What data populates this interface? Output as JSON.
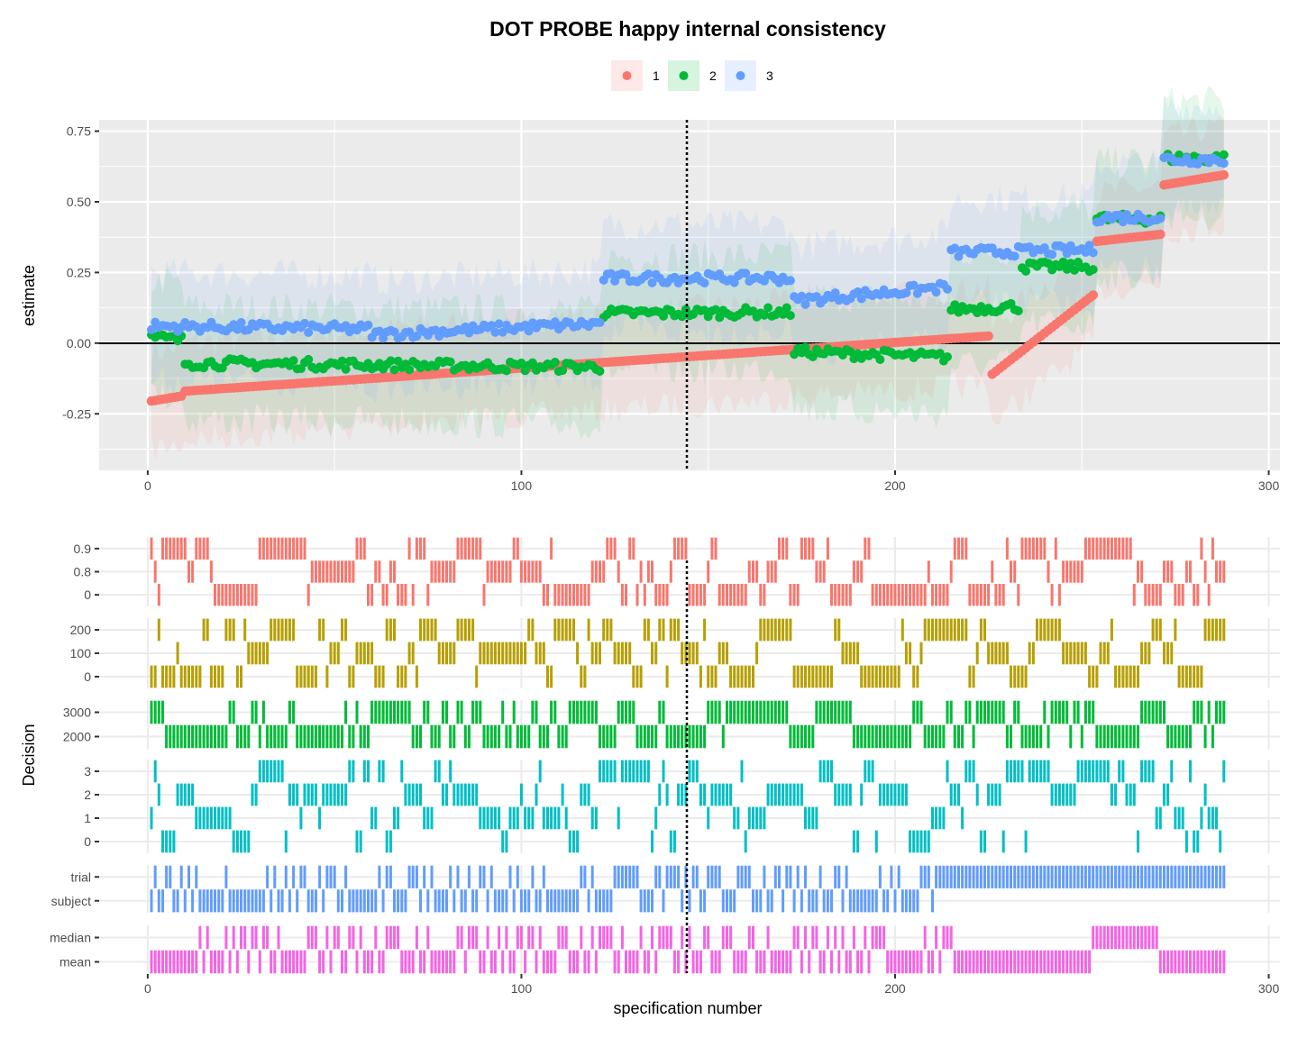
{
  "chart_data": [
    {
      "type": "scatter",
      "title": "DOT PROBE happy internal consistency",
      "xlabel": "",
      "ylabel": "estimate",
      "xlim": [
        -13,
        303
      ],
      "ylim": [
        -0.45,
        0.79
      ],
      "x_ticks": [
        0,
        100,
        200,
        300
      ],
      "y_ticks": [
        0.75,
        0.5,
        0.25,
        0.0,
        -0.25
      ],
      "y_tick_labels": [
        "0.75",
        "0.50",
        "0.25",
        "0.00",
        "-0.25"
      ],
      "reference_lines": {
        "hline_y": 0,
        "vline_x": 144
      },
      "n_specifications": 288,
      "legend_position": "top",
      "background": "#ebebeb",
      "series": [
        {
          "name": "1",
          "color": "#F8766D",
          "ribbon_halfwidth": 0.17,
          "segments": [
            {
              "x": [
                1,
                10
              ],
              "y": [
                -0.205,
                -0.185
              ]
            },
            {
              "x": [
                10,
                225
              ],
              "y": [
                -0.17,
                0.025
              ]
            },
            {
              "x": [
                226,
                253
              ],
              "y": [
                -0.11,
                0.17
              ]
            },
            {
              "x": [
                254,
                271
              ],
              "y": [
                0.36,
                0.385
              ]
            },
            {
              "x": [
                272,
                288
              ],
              "y": [
                0.56,
                0.595
              ]
            }
          ]
        },
        {
          "name": "2",
          "color": "#00BA38",
          "ribbon_halfwidth": 0.2,
          "segments": [
            {
              "x": [
                1,
                10
              ],
              "y": [
                0.02,
                0.01
              ]
            },
            {
              "x": [
                10,
                122
              ],
              "y": [
                -0.07,
                -0.085
              ]
            },
            {
              "x": [
                122,
                173
              ],
              "y": [
                0.105,
                0.11
              ]
            },
            {
              "x": [
                173,
                215
              ],
              "y": [
                -0.03,
                -0.05
              ]
            },
            {
              "x": [
                215,
                234
              ],
              "y": [
                0.12,
                0.13
              ]
            },
            {
              "x": [
                234,
                253
              ],
              "y": [
                0.27,
                0.27
              ]
            },
            {
              "x": [
                254,
                271
              ],
              "y": [
                0.44,
                0.44
              ]
            },
            {
              "x": [
                272,
                288
              ],
              "y": [
                0.655,
                0.655
              ]
            }
          ]
        },
        {
          "name": "3",
          "color": "#619CFF",
          "ribbon_halfwidth": 0.19,
          "segments": [
            {
              "x": [
                1,
                60
              ],
              "y": [
                0.06,
                0.05
              ]
            },
            {
              "x": [
                60,
                122
              ],
              "y": [
                0.03,
                0.07
              ]
            },
            {
              "x": [
                122,
                173
              ],
              "y": [
                0.23,
                0.23
              ]
            },
            {
              "x": [
                173,
                215
              ],
              "y": [
                0.15,
                0.2
              ]
            },
            {
              "x": [
                215,
                253
              ],
              "y": [
                0.32,
                0.33
              ]
            },
            {
              "x": [
                254,
                271
              ],
              "y": [
                0.445,
                0.445
              ]
            },
            {
              "x": [
                272,
                288
              ],
              "y": [
                0.65,
                0.65
              ]
            }
          ]
        }
      ]
    },
    {
      "type": "heatmap",
      "xlabel": "specification number",
      "ylabel": "Decision",
      "xlim": [
        -13,
        303
      ],
      "x_ticks": [
        0,
        100,
        200,
        300
      ],
      "vline_x": 144,
      "panels": [
        {
          "levels": [
            "0.9",
            "0.8",
            "0"
          ],
          "color": "#F8766D"
        },
        {
          "levels": [
            "200",
            "100",
            "0"
          ],
          "color": "#B79F00"
        },
        {
          "levels": [
            "3000",
            "2000"
          ],
          "color": "#00BA38"
        },
        {
          "levels": [
            "3",
            "2",
            "1",
            "0"
          ],
          "color": "#00BFC4"
        },
        {
          "levels": [
            "trial",
            "subject"
          ],
          "color": "#619CFF",
          "runs": [
            {
              "x": [
                1,
                211
              ],
              "level": "mixed"
            },
            {
              "x": [
                212,
                288
              ],
              "level": "trial"
            }
          ]
        },
        {
          "levels": [
            "median",
            "mean"
          ],
          "color": "#F564E3",
          "runs": [
            {
              "x": [
                1,
                9
              ],
              "level": "mean"
            },
            {
              "x": [
                10,
                215
              ],
              "level": "mixed"
            },
            {
              "x": [
                216,
                252
              ],
              "level": "mean"
            },
            {
              "x": [
                253,
                270
              ],
              "level": "median"
            },
            {
              "x": [
                271,
                288
              ],
              "level": "mean"
            }
          ]
        }
      ]
    }
  ]
}
